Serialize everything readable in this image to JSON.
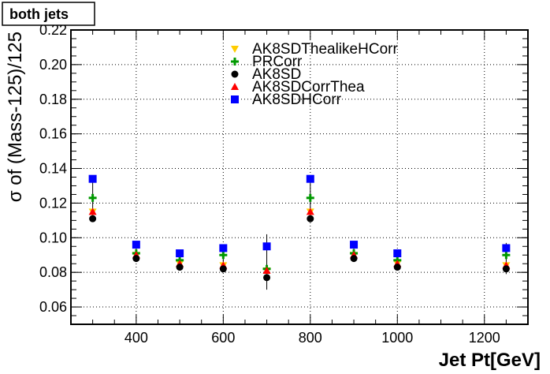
{
  "chart_data": {
    "type": "scatter",
    "panel_label": "both jets",
    "xlabel": "Jet Pt[GeV]",
    "ylabel": "σ of (Mass-125)/125",
    "xlim": [
      250,
      1300
    ],
    "ylim": [
      0.05,
      0.22
    ],
    "xticks": [
      400,
      600,
      800,
      1000,
      1200
    ],
    "yticks": [
      0.06,
      0.08,
      0.1,
      0.12,
      0.14,
      0.16,
      0.18,
      0.2,
      0.22
    ],
    "ytick_labels": [
      "0.06",
      "0.08",
      "0.10",
      "0.12",
      "0.14",
      "0.16",
      "0.18",
      "0.20",
      "0.22"
    ],
    "grid": true,
    "legend_position": "top-center",
    "x": [
      300,
      400,
      500,
      600,
      700,
      800,
      900,
      1000,
      1250
    ],
    "series": [
      {
        "name": "AK8SDThealikeHCorr",
        "marker": "triangle-down",
        "color": "#ffcc00",
        "values": [
          0.115,
          0.09,
          0.085,
          0.084,
          0.081,
          0.115,
          0.09,
          0.085,
          0.084
        ]
      },
      {
        "name": "PRCorr",
        "marker": "plus",
        "color": "#009900",
        "values": [
          0.123,
          0.091,
          0.087,
          0.09,
          0.082,
          0.123,
          0.091,
          0.087,
          0.09
        ]
      },
      {
        "name": "AK8SD",
        "marker": "circle",
        "color": "#000000",
        "values": [
          0.111,
          0.088,
          0.083,
          0.082,
          0.077,
          0.111,
          0.088,
          0.083,
          0.082
        ]
      },
      {
        "name": "AK8SDCorrThea",
        "marker": "triangle-up",
        "color": "#ff0000",
        "values": [
          0.115,
          0.09,
          0.085,
          0.084,
          0.081,
          0.115,
          0.09,
          0.085,
          0.084
        ]
      },
      {
        "name": "AK8SDHCorr",
        "marker": "square",
        "color": "#0000ff",
        "values": [
          0.134,
          0.096,
          0.091,
          0.094,
          0.095,
          0.134,
          0.096,
          0.091,
          0.094
        ]
      }
    ],
    "errors": [
      0.0015,
      0.0015,
      0.0015,
      0.0015,
      0.007,
      0.0015,
      0.0015,
      0.0015,
      0.003
    ]
  }
}
